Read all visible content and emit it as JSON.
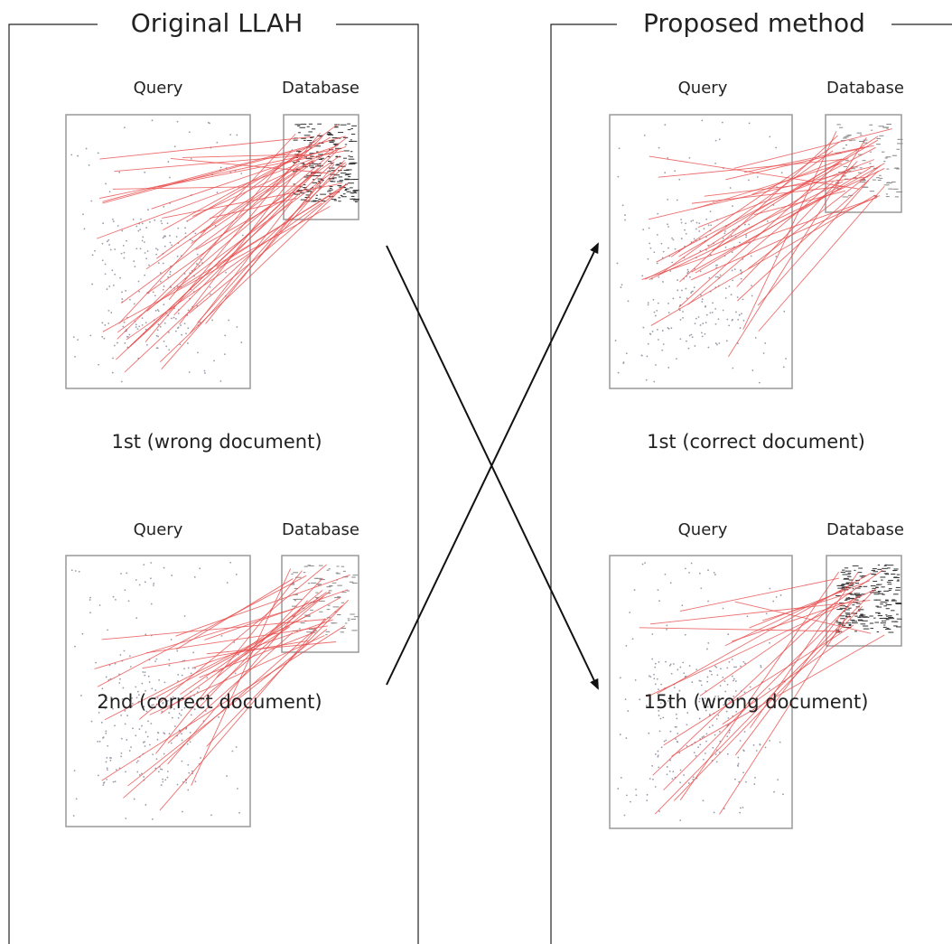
{
  "panels": [
    {
      "title": "Original LLAH",
      "results": [
        {
          "query_label": "Query",
          "database_label": "Database",
          "caption": "1st (wrong document)"
        },
        {
          "query_label": "Query",
          "database_label": "Database",
          "caption": "2nd (correct document)"
        }
      ]
    },
    {
      "title": "Proposed method",
      "results": [
        {
          "query_label": "Query",
          "database_label": "Database",
          "caption": "1st (correct document)"
        },
        {
          "query_label": "Query",
          "database_label": "Database",
          "caption": "15th (wrong document)"
        }
      ]
    }
  ]
}
